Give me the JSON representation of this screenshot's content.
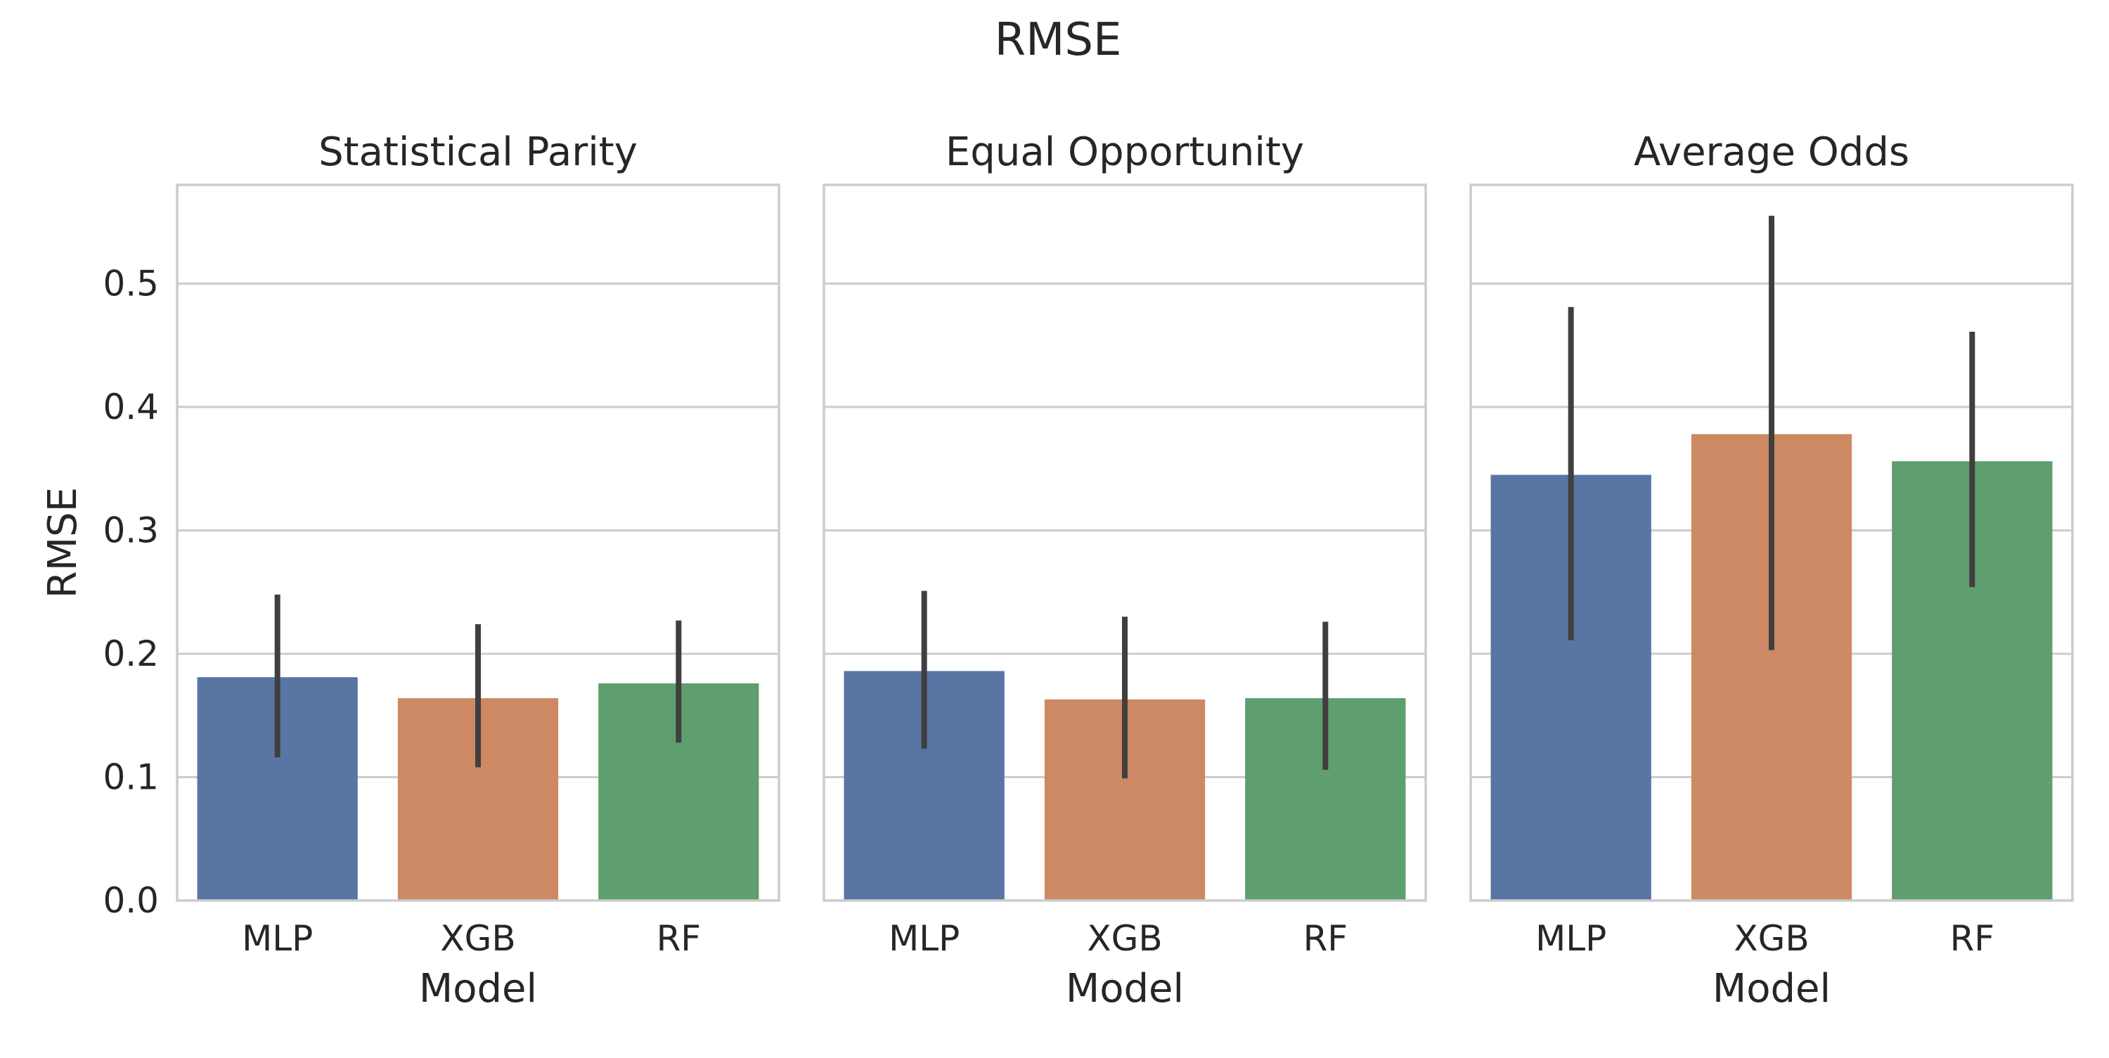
{
  "figure": {
    "title": "RMSE"
  },
  "chart_data": [
    {
      "type": "bar",
      "title": "Statistical Parity",
      "xlabel": "Model",
      "ylabel": "RMSE",
      "categories": [
        "MLP",
        "XGB",
        "RF"
      ],
      "values": [
        0.181,
        0.164,
        0.176
      ],
      "error_low": [
        0.116,
        0.108,
        0.128
      ],
      "error_high": [
        0.248,
        0.224,
        0.227
      ],
      "ylim": [
        0,
        0.58
      ],
      "yticks": [
        "0.0",
        "0.1",
        "0.2",
        "0.3",
        "0.4",
        "0.5"
      ],
      "colors": [
        "#5875a4",
        "#cc8963",
        "#5f9e6e"
      ],
      "grid": true
    },
    {
      "type": "bar",
      "title": "Equal Opportunity",
      "xlabel": "Model",
      "ylabel": "",
      "categories": [
        "MLP",
        "XGB",
        "RF"
      ],
      "values": [
        0.186,
        0.163,
        0.164
      ],
      "error_low": [
        0.123,
        0.099,
        0.106
      ],
      "error_high": [
        0.251,
        0.23,
        0.226
      ],
      "ylim": [
        0,
        0.58
      ],
      "yticks": [],
      "colors": [
        "#5875a4",
        "#cc8963",
        "#5f9e6e"
      ],
      "grid": true
    },
    {
      "type": "bar",
      "title": "Average Odds",
      "xlabel": "Model",
      "ylabel": "",
      "categories": [
        "MLP",
        "XGB",
        "RF"
      ],
      "values": [
        0.345,
        0.378,
        0.356
      ],
      "error_low": [
        0.211,
        0.203,
        0.254
      ],
      "error_high": [
        0.481,
        0.555,
        0.461
      ],
      "ylim": [
        0,
        0.58
      ],
      "yticks": [],
      "colors": [
        "#5875a4",
        "#cc8963",
        "#5f9e6e"
      ],
      "grid": true
    }
  ]
}
